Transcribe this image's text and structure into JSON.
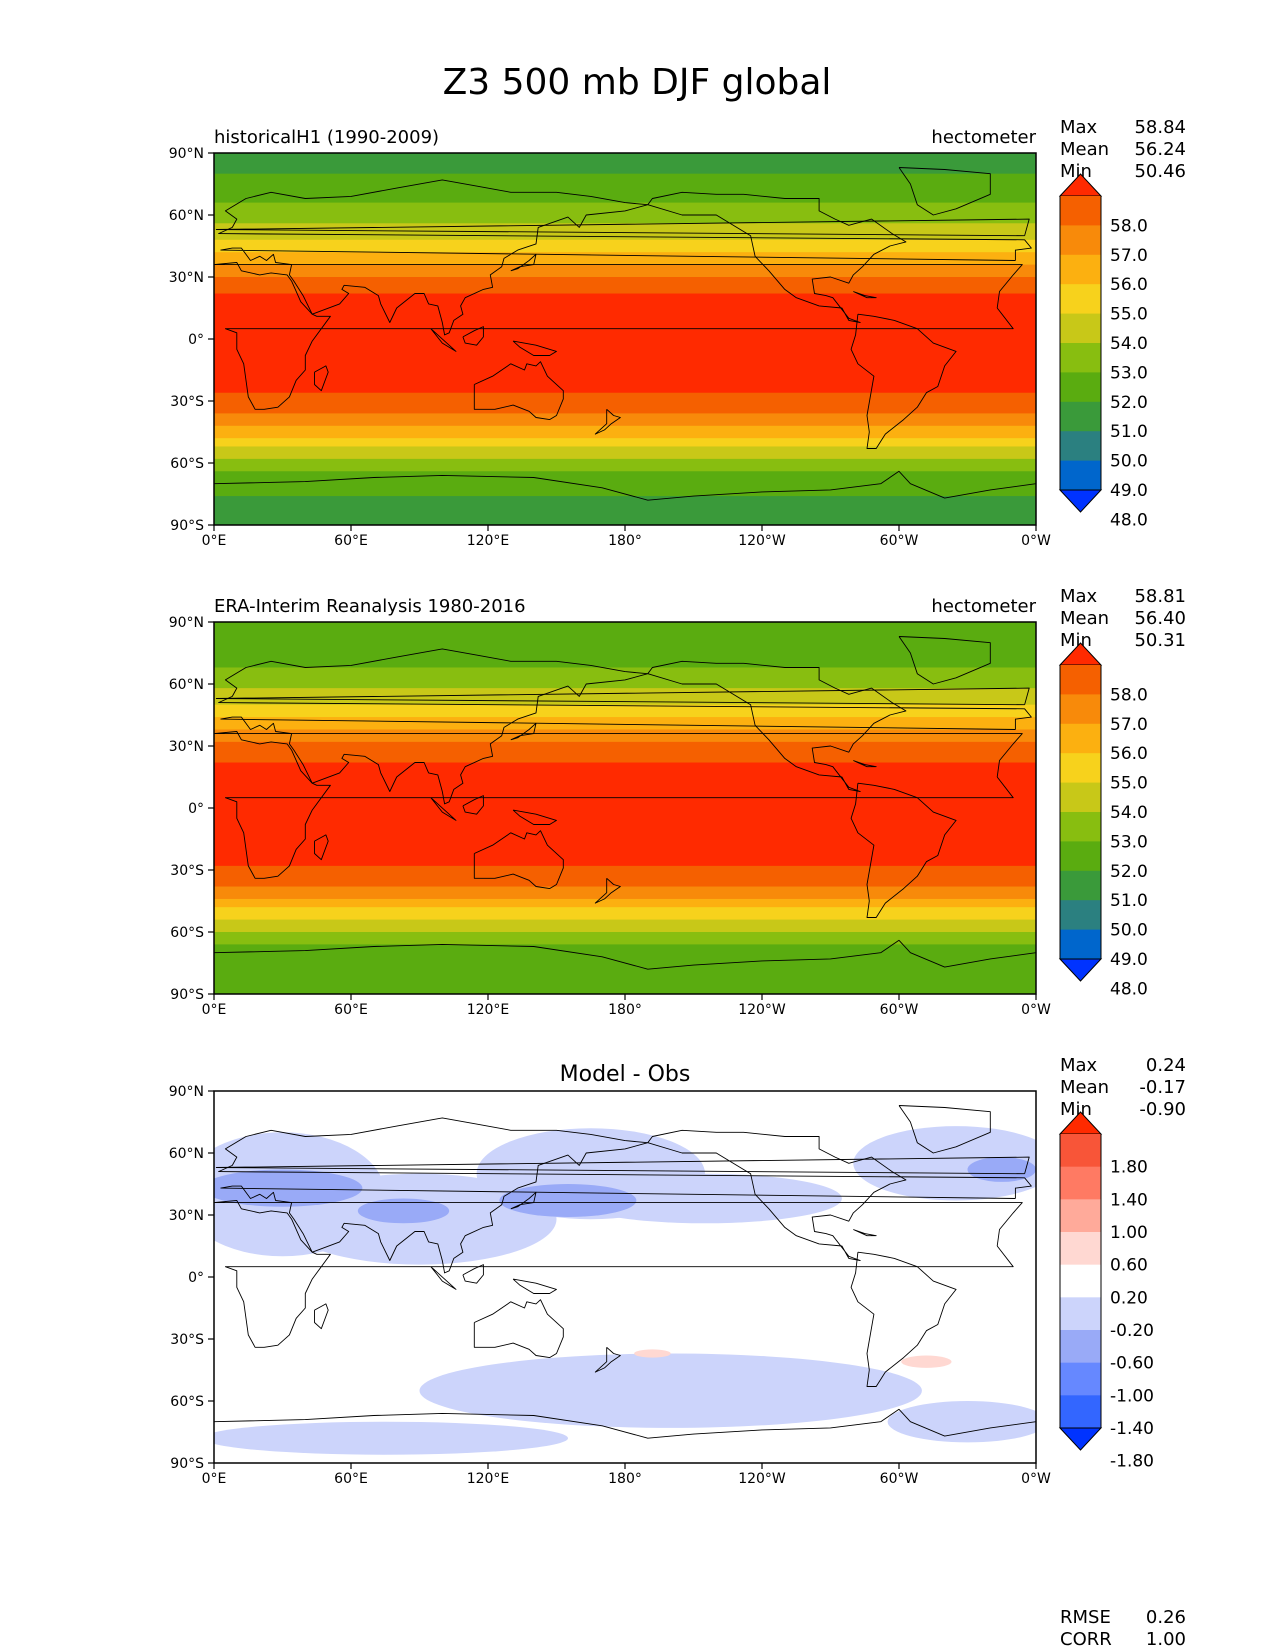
{
  "title": "Z3 500 mb DJF global",
  "colors": {
    "bg": "#ffffff",
    "coast": "#000000",
    "field_levels": [
      "#0033ff",
      "#0066cc",
      "#2b8080",
      "#3a9a3a",
      "#5aac10",
      "#88be10",
      "#c8c818",
      "#f7d21c",
      "#fcb010",
      "#f88a0a",
      "#f56000",
      "#ff2a00"
    ],
    "diff_levels": [
      "#0033ff",
      "#3366ff",
      "#6688ff",
      "#99aaf7",
      "#ccd4fb",
      "#ffffff",
      "#ffd8d2",
      "#ffaa9a",
      "#ff7a63",
      "#f85538",
      "#ff2a00"
    ]
  },
  "axes": {
    "lon_ticks": [
      "0°E",
      "60°E",
      "120°E",
      "180°",
      "120°W",
      "60°W",
      "0°W"
    ],
    "lat_ticks": [
      "90°N",
      "60°N",
      "30°N",
      "0°",
      "30°S",
      "60°S",
      "90°S"
    ]
  },
  "panels": [
    {
      "id": "model",
      "left_title": "historicalH1 (1990-2009)",
      "right_title": "hectometer",
      "center_title": "",
      "stats": {
        "labels": [
          "Max",
          "Mean",
          "Min"
        ],
        "values": [
          "58.84",
          "56.24",
          "50.46"
        ]
      },
      "extra_stats": null
    },
    {
      "id": "obs",
      "left_title": "ERA-Interim Reanalysis 1980-2016",
      "right_title": "hectometer",
      "center_title": "",
      "stats": {
        "labels": [
          "Max",
          "Mean",
          "Min"
        ],
        "values": [
          "58.81",
          "56.40",
          "50.31"
        ]
      },
      "extra_stats": null
    },
    {
      "id": "diff",
      "left_title": "",
      "right_title": "",
      "center_title": "Model - Obs",
      "stats": {
        "labels": [
          "Max",
          "Mean",
          "Min"
        ],
        "values": [
          "0.24",
          "-0.17",
          "-0.90"
        ]
      },
      "extra_stats": {
        "labels": [
          "RMSE",
          "CORR"
        ],
        "values": [
          "0.26",
          "1.00"
        ]
      }
    }
  ],
  "colorbars": {
    "field_ticks": [
      "58.0",
      "57.0",
      "56.0",
      "55.0",
      "54.0",
      "53.0",
      "52.0",
      "51.0",
      "50.0",
      "49.0",
      "48.0"
    ],
    "diff_ticks": [
      "1.80",
      "1.40",
      "1.00",
      "0.60",
      "0.20",
      "-0.20",
      "-0.60",
      "-1.00",
      "-1.40",
      "-1.80"
    ]
  },
  "chart_data": [
    {
      "type": "heatmap",
      "title": "historicalH1 (1990-2009)",
      "units": "hectometer",
      "xlim": [
        0,
        360
      ],
      "ylim": [
        -90,
        90
      ],
      "levels": [
        48,
        49,
        50,
        51,
        52,
        53,
        54,
        55,
        56,
        57,
        58
      ],
      "profile_lat": [
        90,
        80,
        70,
        60,
        50,
        40,
        30,
        20,
        10,
        0,
        -10,
        -20,
        -30,
        -40,
        -50,
        -60,
        -70,
        -80,
        -90
      ],
      "profile_value": [
        50.9,
        51.0,
        51.6,
        52.4,
        53.7,
        55.3,
        57.0,
        58.2,
        58.7,
        58.8,
        58.7,
        58.4,
        57.8,
        56.5,
        54.5,
        52.6,
        51.3,
        50.8,
        50.6
      ],
      "stats": {
        "max": 58.84,
        "mean": 56.24,
        "min": 50.46
      }
    },
    {
      "type": "heatmap",
      "title": "ERA-Interim Reanalysis 1980-2016",
      "units": "hectometer",
      "xlim": [
        0,
        360
      ],
      "ylim": [
        -90,
        90
      ],
      "levels": [
        48,
        49,
        50,
        51,
        52,
        53,
        54,
        55,
        56,
        57,
        58
      ],
      "profile_lat": [
        90,
        80,
        70,
        60,
        50,
        40,
        30,
        20,
        10,
        0,
        -10,
        -20,
        -30,
        -40,
        -50,
        -60,
        -70,
        -80,
        -90
      ],
      "profile_value": [
        51.0,
        51.2,
        51.8,
        52.6,
        54.0,
        55.6,
        57.2,
        58.3,
        58.7,
        58.8,
        58.7,
        58.4,
        57.9,
        56.7,
        54.8,
        52.9,
        51.6,
        51.2,
        51.1
      ],
      "stats": {
        "max": 58.81,
        "mean": 56.4,
        "min": 50.31
      }
    },
    {
      "type": "heatmap",
      "title": "Model - Obs",
      "units": "hectometer",
      "xlim": [
        0,
        360
      ],
      "ylim": [
        -90,
        90
      ],
      "levels": [
        -1.8,
        -1.4,
        -1.0,
        -0.6,
        -0.2,
        0.2,
        0.6,
        1.0,
        1.4,
        1.8
      ],
      "stats": {
        "max": 0.24,
        "mean": -0.17,
        "min": -0.9,
        "rmse": 0.26,
        "corr": 1.0
      }
    }
  ]
}
